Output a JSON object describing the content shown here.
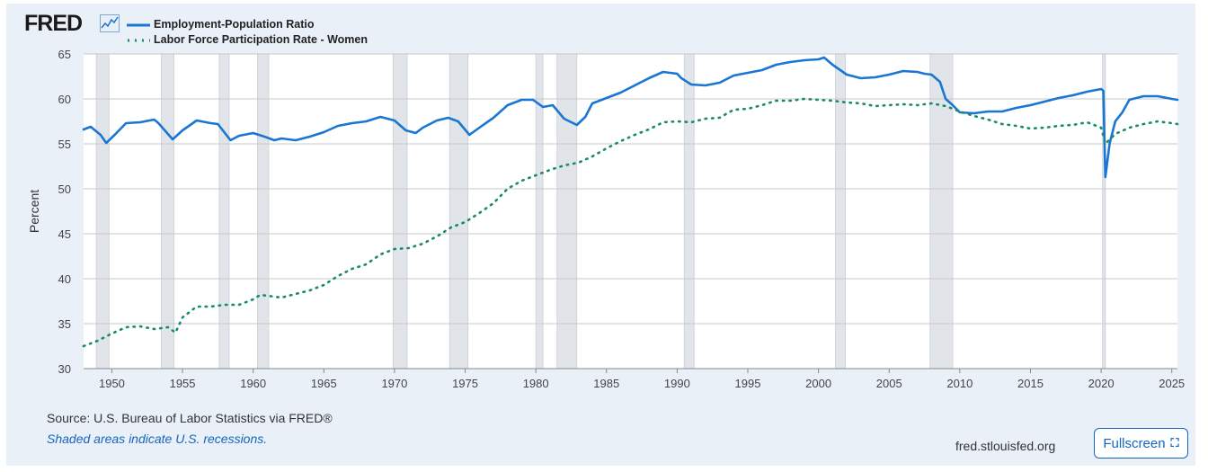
{
  "logo": {
    "text": "FRED"
  },
  "chart_data": {
    "type": "line",
    "xlabel": "",
    "ylabel": "Percent",
    "xlim": [
      1948,
      2025.4
    ],
    "ylim": [
      30,
      65
    ],
    "xticks": [
      1950,
      1955,
      1960,
      1965,
      1970,
      1975,
      1980,
      1985,
      1990,
      1995,
      2000,
      2005,
      2010,
      2015,
      2020,
      2025
    ],
    "yticks": [
      30,
      35,
      40,
      45,
      50,
      55,
      60,
      65
    ],
    "grid": "horizontal",
    "legend_position": "top-left",
    "recessions": [
      [
        1948.9,
        1949.8
      ],
      [
        1953.5,
        1954.4
      ],
      [
        1957.6,
        1958.3
      ],
      [
        1960.3,
        1961.1
      ],
      [
        1969.9,
        1970.9
      ],
      [
        1973.9,
        1975.2
      ],
      [
        1980.0,
        1980.5
      ],
      [
        1981.5,
        1982.9
      ],
      [
        1990.5,
        1991.2
      ],
      [
        2001.2,
        2001.9
      ],
      [
        2007.9,
        2009.5
      ],
      [
        2020.1,
        2020.3
      ]
    ],
    "series": [
      {
        "name": "Employment-Population Ratio",
        "color": "#1976d2",
        "style": "solid",
        "x": [
          1948,
          1948.5,
          1949.2,
          1949.6,
          1950.2,
          1951,
          1952,
          1953,
          1953.3,
          1954.3,
          1955,
          1956,
          1957,
          1957.5,
          1958.4,
          1959,
          1960,
          1960.8,
          1961.5,
          1962,
          1963,
          1964,
          1965,
          1966,
          1967,
          1968,
          1969,
          1970,
          1970.8,
          1971.5,
          1972,
          1973,
          1973.8,
          1974.5,
          1975.3,
          1976,
          1977,
          1978,
          1979,
          1979.8,
          1980.5,
          1981.2,
          1982,
          1982.9,
          1983.5,
          1984,
          1985,
          1986,
          1987,
          1988,
          1989,
          1990,
          1990.3,
          1991,
          1992,
          1993,
          1994,
          1995,
          1996,
          1997,
          1998,
          1999,
          2000,
          2000.4,
          2001,
          2002,
          2003,
          2004,
          2005,
          2006,
          2007,
          2007.5,
          2008,
          2008.6,
          2009,
          2009.5,
          2010,
          2011,
          2012,
          2013,
          2014,
          2015,
          2016,
          2017,
          2018,
          2019,
          2020,
          2020.15,
          2020.3,
          2020.6,
          2021,
          2021.5,
          2022,
          2023,
          2024,
          2025,
          2025.4
        ],
        "y": [
          56.6,
          56.9,
          56.0,
          55.1,
          56.0,
          57.3,
          57.4,
          57.7,
          57.3,
          55.5,
          56.5,
          57.6,
          57.3,
          57.2,
          55.4,
          55.9,
          56.2,
          55.8,
          55.4,
          55.6,
          55.4,
          55.8,
          56.3,
          57.0,
          57.3,
          57.5,
          58.0,
          57.6,
          56.5,
          56.2,
          56.8,
          57.6,
          57.9,
          57.5,
          56.0,
          56.8,
          57.9,
          59.3,
          59.9,
          59.9,
          59.1,
          59.3,
          57.8,
          57.1,
          58.0,
          59.5,
          60.1,
          60.7,
          61.5,
          62.3,
          63.0,
          62.8,
          62.3,
          61.6,
          61.5,
          61.8,
          62.6,
          62.9,
          63.2,
          63.8,
          64.1,
          64.3,
          64.4,
          64.6,
          63.8,
          62.7,
          62.3,
          62.4,
          62.7,
          63.1,
          63.0,
          62.8,
          62.7,
          61.9,
          60.0,
          59.3,
          58.5,
          58.4,
          58.6,
          58.6,
          59.0,
          59.3,
          59.7,
          60.1,
          60.4,
          60.8,
          61.1,
          60.9,
          51.3,
          55.0,
          57.5,
          58.5,
          59.9,
          60.3,
          60.3,
          60.0,
          59.9
        ]
      },
      {
        "name": "Labor Force Participation Rate - Women",
        "color": "#1a8a6e",
        "style": "dotted",
        "x": [
          1948,
          1949,
          1950,
          1951,
          1952,
          1953,
          1954,
          1954.5,
          1955,
          1956,
          1957,
          1958,
          1959,
          1960,
          1960.5,
          1961,
          1962,
          1963,
          1964,
          1965,
          1966,
          1967,
          1968,
          1969,
          1970,
          1971,
          1972,
          1973,
          1974,
          1975,
          1976,
          1977,
          1978,
          1979,
          1980,
          1981,
          1982,
          1983,
          1984,
          1985,
          1986,
          1987,
          1988,
          1989,
          1990,
          1991,
          1992,
          1993,
          1994,
          1995,
          1996,
          1997,
          1998,
          1999,
          2000,
          2001,
          2002,
          2003,
          2004,
          2005,
          2006,
          2007,
          2008,
          2009,
          2010,
          2011,
          2012,
          2013,
          2014,
          2015,
          2016,
          2017,
          2018,
          2019,
          2020,
          2020.3,
          2021,
          2022,
          2023,
          2024,
          2025,
          2025.4
        ],
        "y": [
          32.5,
          33.1,
          33.9,
          34.6,
          34.7,
          34.4,
          34.6,
          34.0,
          35.7,
          36.9,
          36.9,
          37.1,
          37.1,
          37.7,
          38.2,
          38.1,
          37.9,
          38.3,
          38.7,
          39.3,
          40.3,
          41.1,
          41.6,
          42.7,
          43.3,
          43.4,
          43.9,
          44.7,
          45.7,
          46.3,
          47.3,
          48.4,
          50.0,
          50.9,
          51.5,
          52.1,
          52.6,
          52.9,
          53.6,
          54.5,
          55.3,
          56.0,
          56.6,
          57.4,
          57.5,
          57.4,
          57.8,
          57.9,
          58.8,
          58.9,
          59.3,
          59.8,
          59.8,
          60.0,
          59.9,
          59.8,
          59.6,
          59.5,
          59.2,
          59.3,
          59.4,
          59.3,
          59.5,
          59.2,
          58.6,
          58.1,
          57.7,
          57.2,
          57.0,
          56.7,
          56.8,
          57.0,
          57.1,
          57.4,
          56.8,
          55.0,
          56.1,
          56.8,
          57.2,
          57.5,
          57.3,
          57.2
        ]
      }
    ]
  },
  "footer": {
    "source": "Source: U.S. Bureau of Labor Statistics via FRED®",
    "recessions_note": "Shaded areas indicate U.S. recessions.",
    "site": "fred.stlouisfed.org",
    "fullscreen_label": "Fullscreen",
    "fullscreen_icon": "expand-icon"
  }
}
